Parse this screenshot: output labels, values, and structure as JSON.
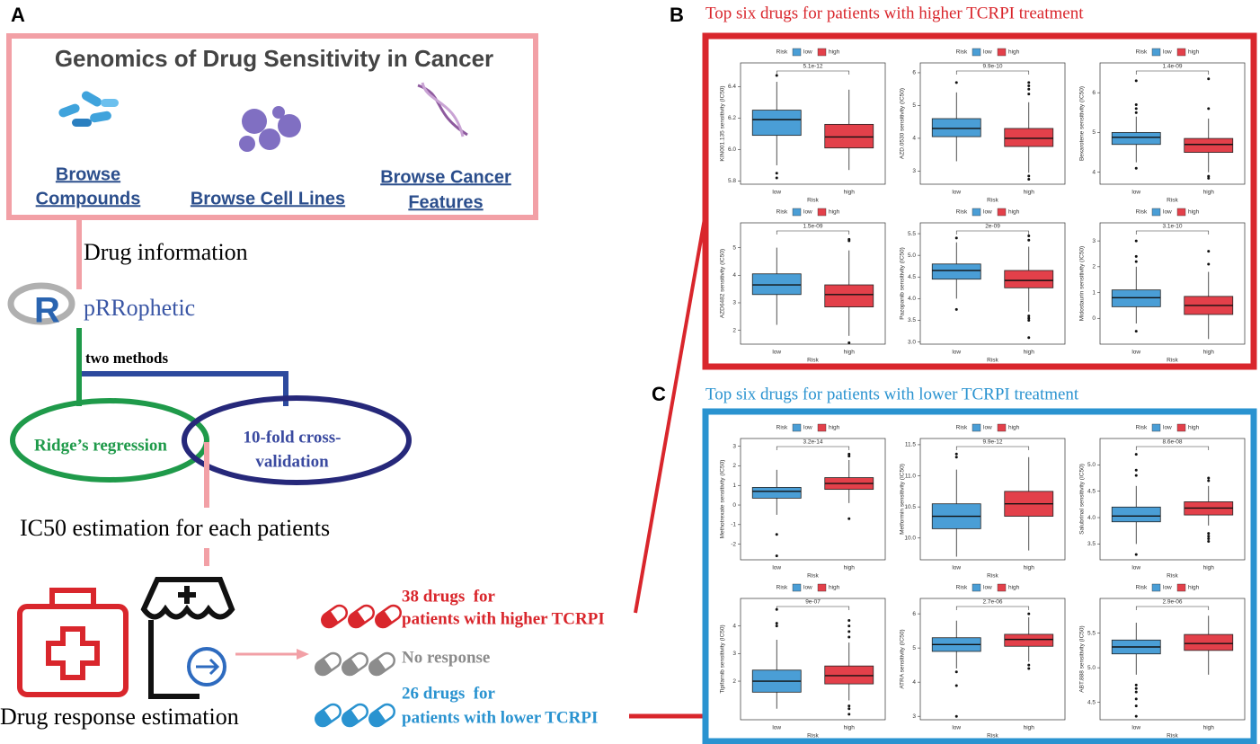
{
  "panel_labels": [
    "A",
    "B",
    "C"
  ],
  "gdsc": {
    "title": "Genomics of Drug Sensitivity in Cancer",
    "links": [
      [
        "Browse",
        "Compounds"
      ],
      [
        "Browse Cell Lines"
      ],
      [
        "Browse Cancer",
        "Features"
      ]
    ]
  },
  "steps": {
    "drug_information": "Drug information",
    "tool": "pRRophetic",
    "two_methods": "two methods",
    "ridge": "Ridge’s regression",
    "cv": [
      "10-fold cross-",
      "validation"
    ],
    "ic50": "IC50 estimation for each patients",
    "drug_response": "Drug response estimation"
  },
  "outcomes": [
    {
      "lines": [
        "38 drugs  for",
        "patients with higher TCRPI"
      ],
      "color": "#d9262c"
    },
    {
      "lines": [
        "No response"
      ],
      "color": "#8c8c8c"
    },
    {
      "lines": [
        "26 drugs  for",
        "patients with lower TCRPI"
      ],
      "color": "#2a93d0"
    }
  ],
  "sections": [
    {
      "title": "Top six drugs for patients with higher TCRPI treatment",
      "color": "#d9262c"
    },
    {
      "title": "Top six drugs for patients with lower TCRPI treatment",
      "color": "#2a93d0"
    }
  ],
  "chart_data": [
    {
      "type": "box",
      "legend_title": "Risk",
      "ylabel": "KIN001.135 sensitivity (IC50)",
      "xlabel": "Risk",
      "categories": [
        "low",
        "high"
      ],
      "pvalue": "5.1e-12",
      "ylim": [
        5.78,
        6.55
      ],
      "yticks": [
        5.8,
        {
          "value": 6,
          "label": "6.0"
        },
        6.2,
        6.4
      ],
      "series": [
        {
          "name": "low",
          "color": "#4a9ed6",
          "q1": 6.09,
          "median": 6.19,
          "q3": 6.25,
          "whislo": 5.9,
          "whishi": 6.43,
          "outliers": [
            6.47,
            5.85,
            5.82
          ]
        },
        {
          "name": "high",
          "color": "#e3404a",
          "q1": 6.01,
          "median": 6.08,
          "q3": 6.16,
          "whislo": 5.87,
          "whishi": 6.38,
          "outliers": []
        }
      ]
    },
    {
      "type": "box",
      "legend_title": "Risk",
      "ylabel": "AZD.0530 sensitivity (IC50)",
      "xlabel": "Risk",
      "categories": [
        "low",
        "high"
      ],
      "pvalue": "9.9e-10",
      "ylim": [
        2.6,
        6.3
      ],
      "yticks": [
        3,
        4,
        5,
        6
      ],
      "series": [
        {
          "name": "low",
          "color": "#4a9ed6",
          "q1": 4.05,
          "median": 4.3,
          "q3": 4.6,
          "whislo": 3.3,
          "whishi": 5.4,
          "outliers": [
            5.7
          ]
        },
        {
          "name": "high",
          "color": "#e3404a",
          "q1": 3.75,
          "median": 4.0,
          "q3": 4.3,
          "whislo": 2.95,
          "whishi": 5.1,
          "outliers": [
            5.7,
            5.6,
            5.5,
            5.35,
            2.85,
            2.75
          ]
        }
      ]
    },
    {
      "type": "box",
      "legend_title": "Risk",
      "ylabel": "Bexarotene sensitivity (IC50)",
      "xlabel": "Risk",
      "categories": [
        "low",
        "high"
      ],
      "pvalue": "1.4e-09",
      "ylim": [
        3.7,
        6.75
      ],
      "yticks": [
        4,
        5,
        6
      ],
      "series": [
        {
          "name": "low",
          "color": "#4a9ed6",
          "q1": 4.7,
          "median": 4.88,
          "q3": 5.0,
          "whislo": 4.25,
          "whishi": 5.4,
          "outliers": [
            5.5,
            5.6,
            5.7,
            6.3,
            4.1
          ]
        },
        {
          "name": "high",
          "color": "#e3404a",
          "q1": 4.5,
          "median": 4.7,
          "q3": 4.85,
          "whislo": 4.0,
          "whishi": 5.35,
          "outliers": [
            5.6,
            6.35,
            3.9,
            3.85
          ]
        }
      ]
    },
    {
      "type": "box",
      "legend_title": "Risk",
      "ylabel": "AZD6482 sensitivity (IC50)",
      "xlabel": "Risk",
      "categories": [
        "low",
        "high"
      ],
      "pvalue": "1.5e-09",
      "ylim": [
        1.5,
        5.9
      ],
      "yticks": [
        2,
        3,
        4,
        5
      ],
      "series": [
        {
          "name": "low",
          "color": "#4a9ed6",
          "q1": 3.3,
          "median": 3.65,
          "q3": 4.05,
          "whislo": 2.2,
          "whishi": 5.0,
          "outliers": []
        },
        {
          "name": "high",
          "color": "#e3404a",
          "q1": 2.85,
          "median": 3.3,
          "q3": 3.65,
          "whislo": 1.8,
          "whishi": 4.9,
          "outliers": [
            5.25,
            5.3,
            1.55
          ]
        }
      ]
    },
    {
      "type": "box",
      "legend_title": "Risk",
      "ylabel": "Pazopanib sensitivity (IC50)",
      "xlabel": "Risk",
      "categories": [
        "low",
        "high"
      ],
      "pvalue": "2e-09",
      "ylim": [
        2.95,
        5.75
      ],
      "yticks": [
        {
          "value": 3,
          "label": "3.0"
        },
        3.5,
        {
          "value": 4,
          "label": "4.0"
        },
        4.5,
        {
          "value": 5,
          "label": "5.0"
        },
        5.5
      ],
      "series": [
        {
          "name": "low",
          "color": "#4a9ed6",
          "q1": 4.45,
          "median": 4.65,
          "q3": 4.8,
          "whislo": 4.0,
          "whishi": 5.3,
          "outliers": [
            5.4,
            3.75
          ]
        },
        {
          "name": "high",
          "color": "#e3404a",
          "q1": 4.25,
          "median": 4.42,
          "q3": 4.65,
          "whislo": 3.7,
          "whishi": 5.2,
          "outliers": [
            5.45,
            5.35,
            3.6,
            3.55,
            3.5,
            3.1
          ]
        }
      ]
    },
    {
      "type": "box",
      "legend_title": "Risk",
      "ylabel": "Midostaurin sensitivity (IC50)",
      "xlabel": "Risk",
      "categories": [
        "low",
        "high"
      ],
      "pvalue": "3.1e-10",
      "ylim": [
        -1,
        3.7
      ],
      "yticks": [
        0,
        1,
        2,
        3
      ],
      "series": [
        {
          "name": "low",
          "color": "#4a9ed6",
          "q1": 0.45,
          "median": 0.8,
          "q3": 1.1,
          "whislo": -0.2,
          "whishi": 2.0,
          "outliers": [
            2.2,
            2.4,
            3.0,
            -0.5
          ]
        },
        {
          "name": "high",
          "color": "#e3404a",
          "q1": 0.15,
          "median": 0.5,
          "q3": 0.85,
          "whislo": -0.8,
          "whishi": 1.8,
          "outliers": [
            2.1,
            2.6
          ]
        }
      ]
    },
    {
      "type": "box",
      "legend_title": "Risk",
      "ylabel": "Methotrexate sensitivity (IC50)",
      "xlabel": "Risk",
      "categories": [
        "low",
        "high"
      ],
      "pvalue": "3.2e-14",
      "ylim": [
        -2.8,
        3.4
      ],
      "yticks": [
        -2,
        -1,
        0,
        1,
        2,
        3
      ],
      "series": [
        {
          "name": "low",
          "color": "#4a9ed6",
          "q1": 0.35,
          "median": 0.7,
          "q3": 0.9,
          "whislo": -0.5,
          "whishi": 1.8,
          "outliers": [
            -1.5,
            -2.6
          ]
        },
        {
          "name": "high",
          "color": "#e3404a",
          "q1": 0.8,
          "median": 1.1,
          "q3": 1.4,
          "whislo": 0.1,
          "whishi": 2.3,
          "outliers": [
            2.5,
            2.6,
            -0.7
          ]
        }
      ]
    },
    {
      "type": "box",
      "legend_title": "Risk",
      "ylabel": "Metformin sensitivity (IC50)",
      "xlabel": "Risk",
      "categories": [
        "low",
        "high"
      ],
      "pvalue": "9.9e-12",
      "ylim": [
        9.65,
        11.6
      ],
      "yticks": [
        {
          "value": 10,
          "label": "10.0"
        },
        10.5,
        {
          "value": 11,
          "label": "11.0"
        },
        11.5
      ],
      "series": [
        {
          "name": "low",
          "color": "#4a9ed6",
          "q1": 10.15,
          "median": 10.35,
          "q3": 10.55,
          "whislo": 9.7,
          "whishi": 11.1,
          "outliers": [
            11.3,
            11.35
          ]
        },
        {
          "name": "high",
          "color": "#e3404a",
          "q1": 10.35,
          "median": 10.55,
          "q3": 10.75,
          "whislo": 9.8,
          "whishi": 11.3,
          "outliers": []
        }
      ]
    },
    {
      "type": "box",
      "legend_title": "Risk",
      "ylabel": "Salubrinal sensitivity (IC50)",
      "xlabel": "Risk",
      "categories": [
        "low",
        "high"
      ],
      "pvalue": "8.6e-08",
      "ylim": [
        3.2,
        5.5
      ],
      "yticks": [
        3.5,
        {
          "value": 4,
          "label": "4.0"
        },
        4.5,
        {
          "value": 5,
          "label": "5.0"
        }
      ],
      "series": [
        {
          "name": "low",
          "color": "#4a9ed6",
          "q1": 3.92,
          "median": 4.03,
          "q3": 4.2,
          "whislo": 3.5,
          "whishi": 4.6,
          "outliers": [
            4.8,
            4.9,
            5.2,
            3.3
          ]
        },
        {
          "name": "high",
          "color": "#e3404a",
          "q1": 4.05,
          "median": 4.18,
          "q3": 4.3,
          "whislo": 3.85,
          "whishi": 4.6,
          "outliers": [
            4.7,
            4.75,
            3.7,
            3.65,
            3.6,
            3.55
          ]
        }
      ]
    },
    {
      "type": "box",
      "legend_title": "Risk",
      "ylabel": "Tipifarnib sensitivity (IC50)",
      "xlabel": "Risk",
      "categories": [
        "low",
        "high"
      ],
      "pvalue": "9e-07",
      "ylim": [
        0.6,
        5.0
      ],
      "yticks": [
        2,
        3,
        4
      ],
      "series": [
        {
          "name": "low",
          "color": "#4a9ed6",
          "q1": 1.6,
          "median": 2.0,
          "q3": 2.4,
          "whislo": 1.0,
          "whishi": 3.5,
          "outliers": [
            4.0,
            4.1,
            4.6
          ]
        },
        {
          "name": "high",
          "color": "#e3404a",
          "q1": 1.9,
          "median": 2.2,
          "q3": 2.55,
          "whislo": 1.3,
          "whishi": 3.4,
          "outliers": [
            3.6,
            3.8,
            4.0,
            4.2,
            1.1,
            1.0,
            0.8
          ]
        }
      ]
    },
    {
      "type": "box",
      "legend_title": "Risk",
      "ylabel": "ATRA sensitivity (IC50)",
      "xlabel": "Risk",
      "categories": [
        "low",
        "high"
      ],
      "pvalue": "2.7e-06",
      "ylim": [
        2.9,
        6.45
      ],
      "yticks": [
        3,
        4,
        5,
        6
      ],
      "series": [
        {
          "name": "low",
          "color": "#4a9ed6",
          "q1": 4.9,
          "median": 5.1,
          "q3": 5.3,
          "whislo": 4.4,
          "whishi": 5.8,
          "outliers": [
            4.3,
            3.9,
            3.0
          ]
        },
        {
          "name": "high",
          "color": "#e3404a",
          "q1": 5.05,
          "median": 5.25,
          "q3": 5.4,
          "whislo": 4.6,
          "whishi": 5.9,
          "outliers": [
            6.0,
            4.5,
            4.4
          ]
        }
      ]
    },
    {
      "type": "box",
      "legend_title": "Risk",
      "ylabel": "ABT.888 sensitivity (IC50)",
      "xlabel": "Risk",
      "categories": [
        "low",
        "high"
      ],
      "pvalue": "2.9e-06",
      "ylim": [
        4.25,
        6.0
      ],
      "yticks": [
        4.5,
        {
          "value": 5,
          "label": "5.0"
        },
        5.5
      ],
      "series": [
        {
          "name": "low",
          "color": "#4a9ed6",
          "q1": 5.2,
          "median": 5.3,
          "q3": 5.4,
          "whislo": 4.9,
          "whishi": 5.65,
          "outliers": [
            4.75,
            4.7,
            4.65,
            4.55,
            4.45,
            4.3
          ]
        },
        {
          "name": "high",
          "color": "#e3404a",
          "q1": 5.25,
          "median": 5.35,
          "q3": 5.48,
          "whislo": 4.9,
          "whishi": 5.75,
          "outliers": []
        }
      ]
    }
  ]
}
